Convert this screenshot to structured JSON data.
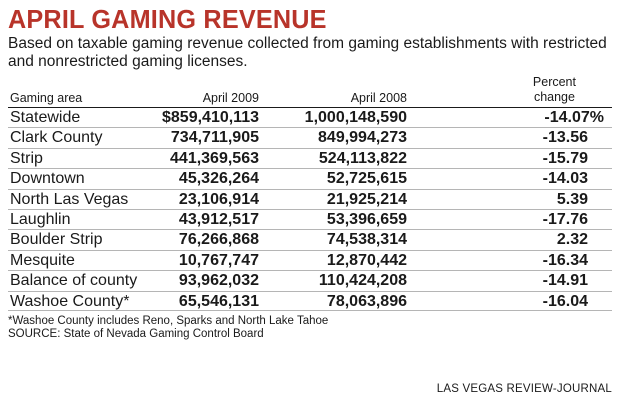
{
  "chart_data": {
    "type": "table",
    "title": "APRIL GAMING REVENUE",
    "subtitle": "Based on taxable gaming revenue collected from gaming establishments with restricted and nonrestricted gaming licenses.",
    "columns": [
      "Gaming area",
      "April 2009",
      "April 2008",
      "Percent change"
    ],
    "rows": [
      {
        "area": "Statewide",
        "april_2009": "$859,410,113",
        "april_2008": "1,000,148,590",
        "pct": "-14.07%"
      },
      {
        "area": "Clark County",
        "april_2009": "734,711,905",
        "april_2008": "849,994,273",
        "pct": "-13.56"
      },
      {
        "area": "Strip",
        "april_2009": "441,369,563",
        "april_2008": "524,113,822",
        "pct": "-15.79"
      },
      {
        "area": "Downtown",
        "april_2009": "45,326,264",
        "april_2008": "52,725,615",
        "pct": "-14.03"
      },
      {
        "area": "North Las Vegas",
        "april_2009": "23,106,914",
        "april_2008": "21,925,214",
        "pct": "5.39"
      },
      {
        "area": "Laughlin",
        "april_2009": "43,912,517",
        "april_2008": "53,396,659",
        "pct": "-17.76"
      },
      {
        "area": "Boulder Strip",
        "april_2009": "76,266,868",
        "april_2008": "74,538,314",
        "pct": "2.32"
      },
      {
        "area": "Mesquite",
        "april_2009": "10,767,747",
        "april_2008": "12,870,442",
        "pct": "-16.34"
      },
      {
        "area": "Balance of county",
        "april_2009": "93,962,032",
        "april_2008": "110,424,208",
        "pct": "-14.91"
      },
      {
        "area": "Washoe County*",
        "april_2009": "65,546,131",
        "april_2008": "78,063,896",
        "pct": "-16.04"
      }
    ],
    "footnote": "*Washoe County includes Reno, Sparks and North Lake Tahoe",
    "source": "SOURCE: State of Nevada Gaming Control Board",
    "credit": "LAS VEGAS REVIEW-JOURNAL",
    "colors": {
      "title": "#b8342a",
      "text": "#1a1a1a",
      "rule": "#b5b5b5"
    }
  }
}
